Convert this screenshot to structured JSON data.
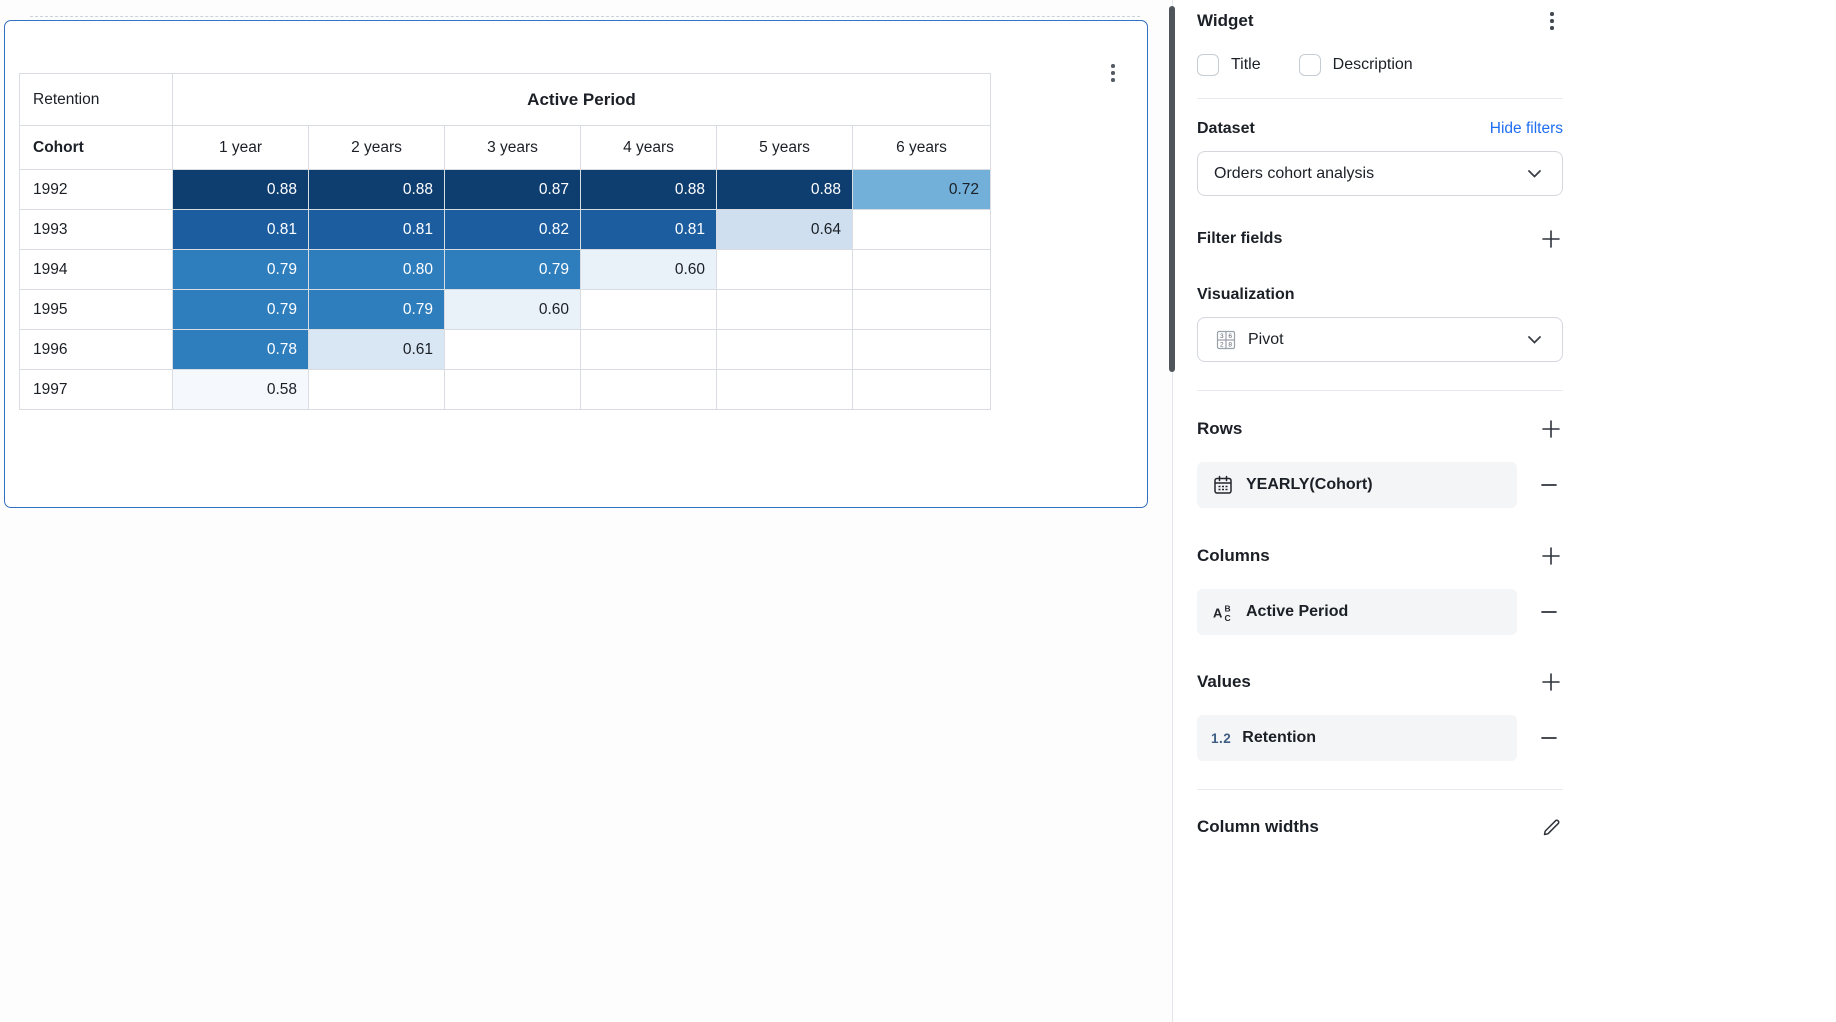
{
  "widget_card": {
    "menu_icon": "kebab-menu"
  },
  "pivot": {
    "corner_label": "Retention",
    "group_header": "Active Period",
    "row_dim_label": "Cohort",
    "col_headers": [
      "1 year",
      "2 years",
      "3 years",
      "4 years",
      "5 years",
      "6 years"
    ],
    "rows": [
      {
        "label": "1992",
        "cells": [
          {
            "v": "0.88",
            "bg": "#0e3d70",
            "fg": "#ffffff"
          },
          {
            "v": "0.88",
            "bg": "#0e3d70",
            "fg": "#ffffff"
          },
          {
            "v": "0.87",
            "bg": "#0e3d70",
            "fg": "#ffffff"
          },
          {
            "v": "0.88",
            "bg": "#0e3d70",
            "fg": "#ffffff"
          },
          {
            "v": "0.88",
            "bg": "#0e3d70",
            "fg": "#ffffff"
          },
          {
            "v": "0.72",
            "bg": "#72b0da",
            "fg": "#1b1f26"
          }
        ]
      },
      {
        "label": "1993",
        "cells": [
          {
            "v": "0.81",
            "bg": "#1c5da0",
            "fg": "#ffffff"
          },
          {
            "v": "0.81",
            "bg": "#1c5da0",
            "fg": "#ffffff"
          },
          {
            "v": "0.82",
            "bg": "#1c5da0",
            "fg": "#ffffff"
          },
          {
            "v": "0.81",
            "bg": "#1c5da0",
            "fg": "#ffffff"
          },
          {
            "v": "0.64",
            "bg": "#cfdfef",
            "fg": "#1b1f26"
          },
          {
            "v": "",
            "bg": "",
            "fg": ""
          }
        ]
      },
      {
        "label": "1994",
        "cells": [
          {
            "v": "0.79",
            "bg": "#2e7dbd",
            "fg": "#ffffff"
          },
          {
            "v": "0.80",
            "bg": "#2e7dbd",
            "fg": "#ffffff"
          },
          {
            "v": "0.79",
            "bg": "#2e7dbd",
            "fg": "#ffffff"
          },
          {
            "v": "0.60",
            "bg": "#e9f1f9",
            "fg": "#1b1f26"
          },
          {
            "v": "",
            "bg": "",
            "fg": ""
          },
          {
            "v": "",
            "bg": "",
            "fg": ""
          }
        ]
      },
      {
        "label": "1995",
        "cells": [
          {
            "v": "0.79",
            "bg": "#2e7dbd",
            "fg": "#ffffff"
          },
          {
            "v": "0.79",
            "bg": "#2e7dbd",
            "fg": "#ffffff"
          },
          {
            "v": "0.60",
            "bg": "#e9f1f9",
            "fg": "#1b1f26"
          },
          {
            "v": "",
            "bg": "",
            "fg": ""
          },
          {
            "v": "",
            "bg": "",
            "fg": ""
          },
          {
            "v": "",
            "bg": "",
            "fg": ""
          }
        ]
      },
      {
        "label": "1996",
        "cells": [
          {
            "v": "0.78",
            "bg": "#2e7dbd",
            "fg": "#ffffff"
          },
          {
            "v": "0.61",
            "bg": "#d9e7f4",
            "fg": "#1b1f26"
          },
          {
            "v": "",
            "bg": "",
            "fg": ""
          },
          {
            "v": "",
            "bg": "",
            "fg": ""
          },
          {
            "v": "",
            "bg": "",
            "fg": ""
          },
          {
            "v": "",
            "bg": "",
            "fg": ""
          }
        ]
      },
      {
        "label": "1997",
        "cells": [
          {
            "v": "0.58",
            "bg": "#f5f9fd",
            "fg": "#1b1f26"
          },
          {
            "v": "",
            "bg": "",
            "fg": ""
          },
          {
            "v": "",
            "bg": "",
            "fg": ""
          },
          {
            "v": "",
            "bg": "",
            "fg": ""
          },
          {
            "v": "",
            "bg": "",
            "fg": ""
          },
          {
            "v": "",
            "bg": "",
            "fg": ""
          }
        ]
      }
    ]
  },
  "panel": {
    "title": "Widget",
    "title_checkbox_label": "Title",
    "description_checkbox_label": "Description",
    "dataset": {
      "heading": "Dataset",
      "link_label": "Hide filters",
      "selected": "Orders cohort analysis"
    },
    "filter_fields": {
      "heading": "Filter fields"
    },
    "visualization": {
      "heading": "Visualization",
      "selected": "Pivot",
      "pivot_icon_digits": [
        "3",
        "6",
        "2",
        "8"
      ]
    },
    "rows": {
      "heading": "Rows",
      "item": "YEARLY(Cohort)"
    },
    "columns": {
      "heading": "Columns",
      "item": "Active Period"
    },
    "values": {
      "heading": "Values",
      "item": "Retention",
      "item_icon_text": "1.2"
    },
    "column_widths": {
      "heading": "Column widths"
    }
  },
  "colors": {
    "selection_border": "#2f74c0",
    "link": "#1f6ef2",
    "heat_scale": [
      "#0e3d70",
      "#1c5da0",
      "#2e7dbd",
      "#72b0da",
      "#cfdfef",
      "#d9e7f4",
      "#e9f1f9",
      "#f5f9fd"
    ]
  }
}
